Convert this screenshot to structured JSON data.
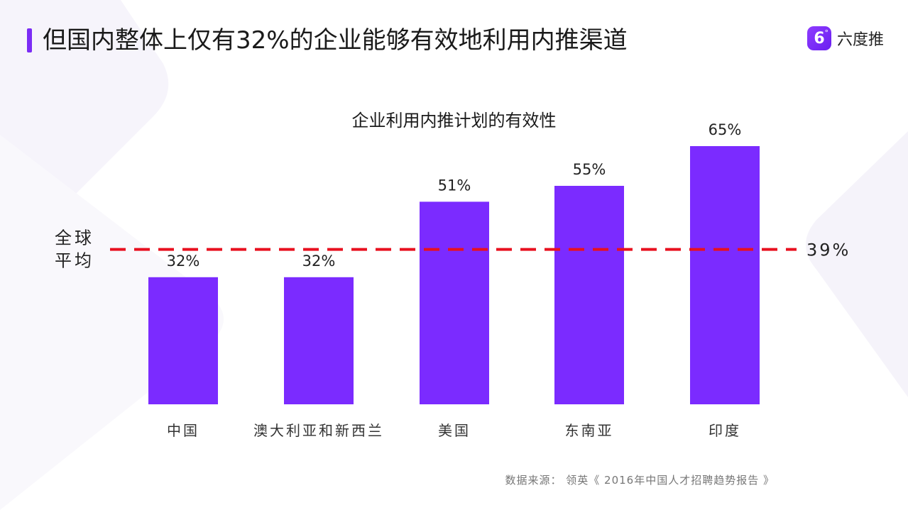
{
  "header": {
    "title": "但国内整体上仅有32%的企业能够有效地利用内推渠道",
    "brand_name": "六度推",
    "brand_logo_glyph": "6",
    "brand_logo_mark": "°"
  },
  "source": "数据来源： 领英《 2016年中国人才招聘趋势报告 》",
  "colors": {
    "accent": "#7B2CF5",
    "bar": "#7B2BFF",
    "reference_line": "#E8101F"
  },
  "chart_data": {
    "type": "bar",
    "title": "企业利用内推计划的有效性",
    "categories": [
      "中国",
      "澳大利亚和新西兰",
      "美国",
      "东南亚",
      "印度"
    ],
    "values": [
      32,
      32,
      51,
      55,
      65
    ],
    "value_labels": [
      "32%",
      "32%",
      "51%",
      "55%",
      "65%"
    ],
    "unit": "%",
    "ylim": [
      0,
      80
    ],
    "grid": false,
    "reference_line": {
      "value": 39,
      "label_left": [
        "全球",
        "平均"
      ],
      "label_right": "39%",
      "style": "dashed"
    }
  }
}
